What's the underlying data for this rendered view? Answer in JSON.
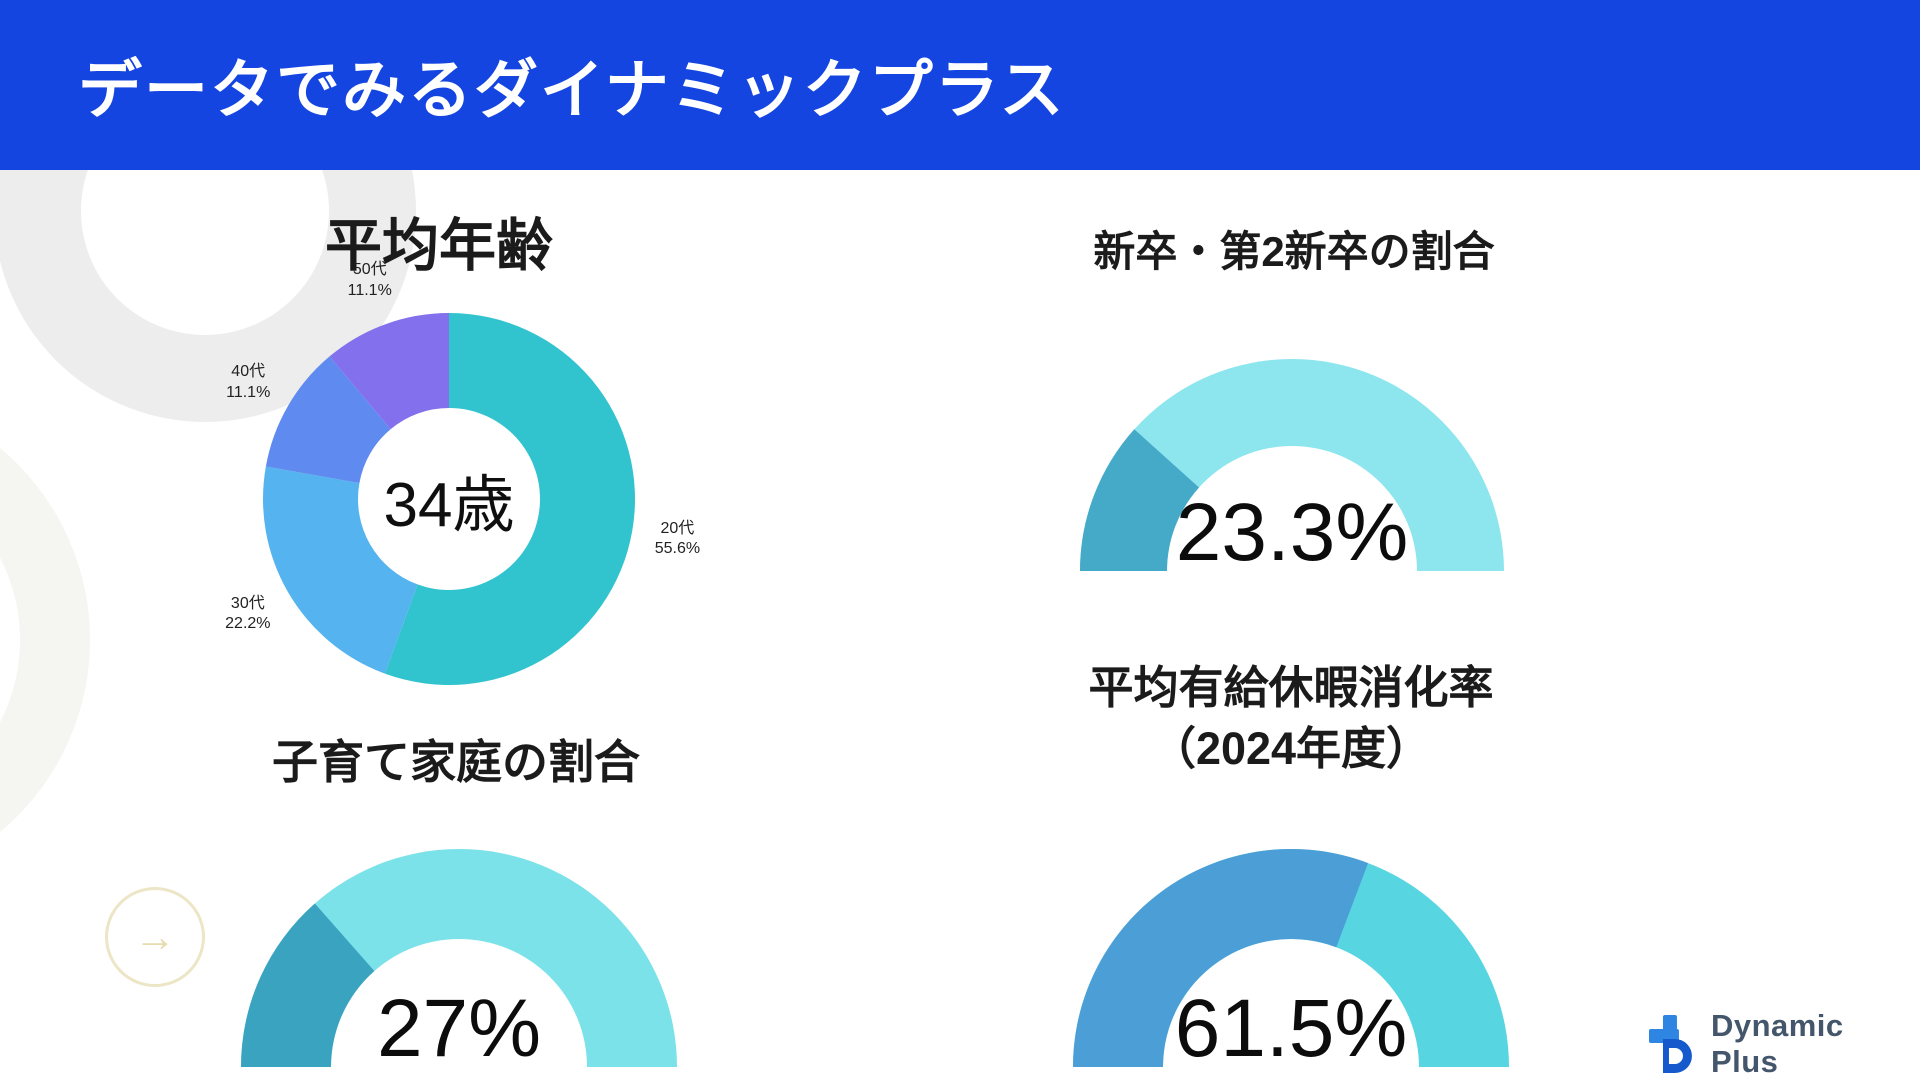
{
  "header": {
    "title": "データでみるダイナミックプラス"
  },
  "theme": {
    "header_bg": "#1545e1",
    "header_text": "#ffffff",
    "title_text": "#1b1b1b",
    "value_text": "#0c0c0c",
    "ring_gray": "#ededed"
  },
  "decor": {
    "arrow_glyph": "→"
  },
  "logo": {
    "text": "Dynamic Plus",
    "text_color": "#44566b",
    "icon_colors": {
      "plus": "#2f86e2",
      "d": "#1659cc"
    }
  },
  "chart_data": [
    {
      "id": "average-age-donut",
      "type": "pie",
      "title": "平均年齢",
      "center_label": "34歳",
      "segments": [
        {
          "label": "20代",
          "pct": 55.6,
          "color": "#31c3ce"
        },
        {
          "label": "30代",
          "pct": 22.2,
          "color": "#55b3ef"
        },
        {
          "label": "40代",
          "pct": 11.1,
          "color": "#5f8bf0"
        },
        {
          "label": "50代",
          "pct": 11.1,
          "color": "#8370ec"
        }
      ]
    },
    {
      "id": "new-grad-gauge",
      "type": "gauge",
      "title": "新卒・第2新卒の割合",
      "value_label": "23.3%",
      "value_pct": 23.3,
      "fill_color": "#45a9c8",
      "track_color": "#8de6ee"
    },
    {
      "id": "child-rearing-gauge",
      "type": "gauge",
      "title": "子育て家庭の割合",
      "value_label": "27%",
      "value_pct": 27,
      "fill_color": "#3aa3c0",
      "track_color": "#7ce2ea"
    },
    {
      "id": "paid-leave-gauge",
      "type": "gauge",
      "title": "平均有給休暇消化率\n（2024年度）",
      "value_label": "61.5%",
      "value_pct": 61.5,
      "fill_color": "#4b9fd6",
      "track_color": "#57d5e0"
    }
  ]
}
